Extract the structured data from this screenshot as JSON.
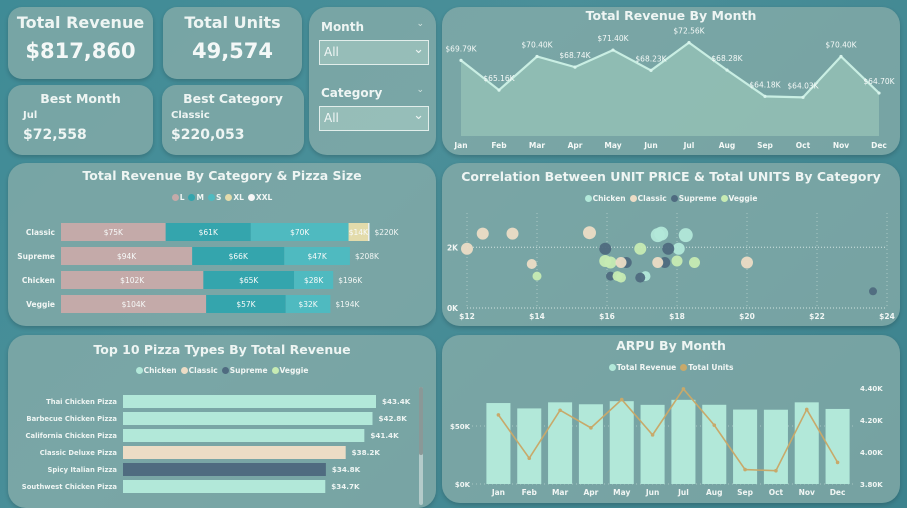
{
  "kpis": {
    "total_revenue": {
      "label": "Total Revenue",
      "value": "$817,860"
    },
    "total_units": {
      "label": "Total Units",
      "value": "49,574"
    },
    "best_month": {
      "label": "Best Month",
      "name": "Jul",
      "value": "$72,558"
    },
    "best_category": {
      "label": "Best Category",
      "name": "Classic",
      "value": "$220,053"
    }
  },
  "slicers": {
    "month": {
      "label": "Month",
      "value": "All"
    },
    "category": {
      "label": "Category",
      "value": "All"
    }
  },
  "colors": {
    "chicken": "#b2e8d9",
    "classic": "#ecdcc5",
    "supreme": "#4f6b80",
    "veggie": "#c6ebb3",
    "size_L": "#c4aaa9",
    "size_M": "#34a5ad",
    "size_S": "#4fbac0",
    "size_XL": "#e3dbab",
    "size_XXL": "#f6f6f6",
    "line_units": "#c8a96a"
  },
  "chart_data": [
    {
      "id": "revenue_by_month",
      "type": "area",
      "title": "Total Revenue By Month",
      "categories": [
        "Jan",
        "Feb",
        "Mar",
        "Apr",
        "May",
        "Jun",
        "Jul",
        "Aug",
        "Sep",
        "Oct",
        "Nov",
        "Dec"
      ],
      "values": [
        69.79,
        65.16,
        70.4,
        68.74,
        71.4,
        68.23,
        72.56,
        68.28,
        64.18,
        64.03,
        70.4,
        64.7
      ],
      "labels": [
        "$69.79K",
        "$65.16K",
        "$70.40K",
        "$68.74K",
        "$71.40K",
        "$68.23K",
        "$72.56K",
        "$68.28K",
        "$64.18K",
        "$64.03K",
        "$70.40K",
        "$64.70K"
      ],
      "unit": "$K",
      "ylim": [
        58,
        75
      ]
    },
    {
      "id": "revenue_by_category_size",
      "type": "bar",
      "orientation": "horizontal-stacked",
      "title": "Total Revenue By Category & Pizza Size",
      "legend": [
        "L",
        "M",
        "S",
        "XL",
        "XXL"
      ],
      "legend_position": "top-center",
      "categories": [
        "Classic",
        "Supreme",
        "Chicken",
        "Veggie"
      ],
      "series": [
        {
          "name": "L",
          "values": [
            75,
            94,
            102,
            104
          ],
          "labels": [
            "$75K",
            "$94K",
            "$102K",
            "$104K"
          ]
        },
        {
          "name": "M",
          "values": [
            61,
            66,
            65,
            57
          ],
          "labels": [
            "$61K",
            "$66K",
            "$65K",
            "$57K"
          ]
        },
        {
          "name": "S",
          "values": [
            70,
            47,
            28,
            32
          ],
          "labels": [
            "$70K",
            "$47K",
            "$28K",
            "$32K"
          ]
        },
        {
          "name": "XL",
          "values": [
            14,
            0,
            0,
            0
          ],
          "labels": [
            "$14K",
            "",
            "",
            ""
          ]
        },
        {
          "name": "XXL",
          "values": [
            1,
            0,
            0,
            0
          ],
          "labels": [
            "",
            "",
            "",
            ""
          ]
        }
      ],
      "totals": [
        "$220K",
        "$208K",
        "$196K",
        "$194K"
      ],
      "xlim": [
        0,
        240
      ]
    },
    {
      "id": "price_vs_units",
      "type": "scatter",
      "title": "Correlation Between UNIT PRICE & Total UNITS By Category",
      "legend": [
        "Chicken",
        "Classic",
        "Supreme",
        "Veggie"
      ],
      "legend_position": "top-center",
      "xlabel": "",
      "ylabel": "",
      "xlim": [
        12,
        24
      ],
      "ylim": [
        0,
        2800
      ],
      "xticks": [
        "$12",
        "$14",
        "$16",
        "$18",
        "$20",
        "$22",
        "$24"
      ],
      "yticks": [
        "0K",
        "2K"
      ],
      "grid": true,
      "points": [
        {
          "cat": "Classic",
          "x": 12.0,
          "y": 1950,
          "r": 6
        },
        {
          "cat": "Classic",
          "x": 12.45,
          "y": 2450,
          "r": 6
        },
        {
          "cat": "Classic",
          "x": 13.3,
          "y": 2450,
          "r": 6
        },
        {
          "cat": "Classic",
          "x": 15.5,
          "y": 2480,
          "r": 6.5
        },
        {
          "cat": "Classic",
          "x": 13.85,
          "y": 1450,
          "r": 5
        },
        {
          "cat": "Veggie",
          "x": 14.0,
          "y": 1050,
          "r": 4.5
        },
        {
          "cat": "Supreme",
          "x": 15.95,
          "y": 1950,
          "r": 6
        },
        {
          "cat": "Veggie",
          "x": 15.95,
          "y": 1550,
          "r": 6
        },
        {
          "cat": "Veggie",
          "x": 16.1,
          "y": 1500,
          "r": 6
        },
        {
          "cat": "Supreme",
          "x": 16.55,
          "y": 1500,
          "r": 5.5
        },
        {
          "cat": "Classic",
          "x": 16.4,
          "y": 1500,
          "r": 5.5
        },
        {
          "cat": "Supreme",
          "x": 16.1,
          "y": 1050,
          "r": 4.5
        },
        {
          "cat": "Veggie",
          "x": 16.3,
          "y": 1050,
          "r": 5
        },
        {
          "cat": "Veggie",
          "x": 16.4,
          "y": 1000,
          "r": 5
        },
        {
          "cat": "Veggie",
          "x": 16.95,
          "y": 1950,
          "r": 6
        },
        {
          "cat": "Chicken",
          "x": 17.1,
          "y": 1050,
          "r": 5
        },
        {
          "cat": "Supreme",
          "x": 16.95,
          "y": 1000,
          "r": 5
        },
        {
          "cat": "Chicken",
          "x": 17.45,
          "y": 2400,
          "r": 7
        },
        {
          "cat": "Chicken",
          "x": 17.55,
          "y": 2450,
          "r": 7
        },
        {
          "cat": "Chicken",
          "x": 18.25,
          "y": 2400,
          "r": 7
        },
        {
          "cat": "Chicken",
          "x": 18.05,
          "y": 1950,
          "r": 6
        },
        {
          "cat": "Supreme",
          "x": 17.75,
          "y": 1950,
          "r": 6
        },
        {
          "cat": "Supreme",
          "x": 17.65,
          "y": 1500,
          "r": 5.5
        },
        {
          "cat": "Classic",
          "x": 17.45,
          "y": 1500,
          "r": 5.5
        },
        {
          "cat": "Veggie",
          "x": 18.0,
          "y": 1550,
          "r": 5.5
        },
        {
          "cat": "Veggie",
          "x": 18.5,
          "y": 1500,
          "r": 5.5
        },
        {
          "cat": "Classic",
          "x": 20.0,
          "y": 1500,
          "r": 6
        },
        {
          "cat": "Supreme",
          "x": 23.6,
          "y": 550,
          "r": 4
        }
      ]
    },
    {
      "id": "top10_pizza",
      "type": "bar",
      "orientation": "horizontal",
      "title": "Top 10 Pizza Types By Total Revenue",
      "legend": [
        "Chicken",
        "Classic",
        "Supreme",
        "Veggie"
      ],
      "legend_position": "top-center",
      "categories": [
        "Thai Chicken Pizza",
        "Barbecue Chicken Pizza",
        "California Chicken Pizza",
        "Classic Deluxe Pizza",
        "Spicy Italian Pizza",
        "Southwest Chicken Pizza"
      ],
      "values": [
        43.4,
        42.8,
        41.4,
        38.2,
        34.8,
        34.7
      ],
      "labels": [
        "$43.4K",
        "$42.8K",
        "$41.4K",
        "$38.2K",
        "$34.8K",
        "$34.7K"
      ],
      "category_of": [
        "Chicken",
        "Chicken",
        "Chicken",
        "Classic",
        "Supreme",
        "Chicken"
      ],
      "xlim": [
        0,
        43.4
      ]
    },
    {
      "id": "arpu_by_month",
      "type": "bar",
      "combo": "bar+line",
      "title": "ARPU By Month",
      "legend": [
        "Total Revenue",
        "Total Units"
      ],
      "legend_position": "top-center",
      "categories": [
        "Jan",
        "Feb",
        "Mar",
        "Apr",
        "May",
        "Jun",
        "Jul",
        "Aug",
        "Sep",
        "Oct",
        "Nov",
        "Dec"
      ],
      "series": [
        {
          "name": "Total Revenue",
          "axis": "left",
          "values": [
            69790,
            65160,
            70400,
            68740,
            71400,
            68230,
            72560,
            68280,
            64180,
            64030,
            70400,
            64700
          ]
        },
        {
          "name": "Total Units",
          "axis": "right",
          "values": [
            4232,
            3961,
            4261,
            4151,
            4328,
            4107,
            4394,
            4168,
            3890,
            3883,
            4266,
            3935
          ]
        }
      ],
      "ylim_left": [
        0,
        100000
      ],
      "ylim_right": [
        3800,
        4400
      ],
      "yticks_left": [
        "$0K",
        "$50K"
      ],
      "yticks_right": [
        "3.80K",
        "4.00K",
        "4.20K",
        "4.40K"
      ]
    }
  ]
}
